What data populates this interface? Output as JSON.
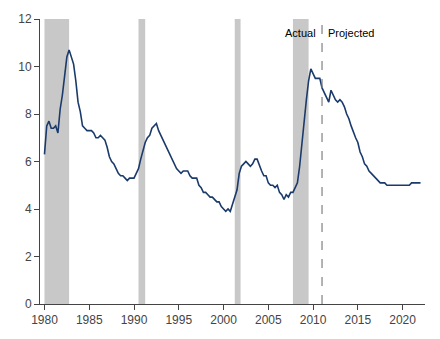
{
  "chart_data": {
    "type": "line",
    "x": [
      1980.0,
      1980.25,
      1980.5,
      1980.75,
      1981.0,
      1981.25,
      1981.5,
      1981.75,
      1982.0,
      1982.25,
      1982.5,
      1982.75,
      1983.0,
      1983.25,
      1983.5,
      1983.75,
      1984.0,
      1984.25,
      1984.5,
      1984.75,
      1985.0,
      1985.25,
      1985.5,
      1985.75,
      1986.0,
      1986.25,
      1986.5,
      1986.75,
      1987.0,
      1987.25,
      1987.5,
      1987.75,
      1988.0,
      1988.25,
      1988.5,
      1988.75,
      1989.0,
      1989.25,
      1989.5,
      1989.75,
      1990.0,
      1990.25,
      1990.5,
      1990.75,
      1991.0,
      1991.25,
      1991.5,
      1991.75,
      1992.0,
      1992.25,
      1992.5,
      1992.75,
      1993.0,
      1993.25,
      1993.5,
      1993.75,
      1994.0,
      1994.25,
      1994.5,
      1994.75,
      1995.0,
      1995.25,
      1995.5,
      1995.75,
      1996.0,
      1996.25,
      1996.5,
      1996.75,
      1997.0,
      1997.25,
      1997.5,
      1997.75,
      1998.0,
      1998.25,
      1998.5,
      1998.75,
      1999.0,
      1999.25,
      1999.5,
      1999.75,
      2000.0,
      2000.25,
      2000.5,
      2000.75,
      2001.0,
      2001.25,
      2001.5,
      2001.75,
      2002.0,
      2002.25,
      2002.5,
      2002.75,
      2003.0,
      2003.25,
      2003.5,
      2003.75,
      2004.0,
      2004.25,
      2004.5,
      2004.75,
      2005.0,
      2005.25,
      2005.5,
      2005.75,
      2006.0,
      2006.25,
      2006.5,
      2006.75,
      2007.0,
      2007.25,
      2007.5,
      2007.75,
      2008.0,
      2008.25,
      2008.5,
      2008.75,
      2009.0,
      2009.25,
      2009.5,
      2009.75,
      2010.0,
      2010.25,
      2010.5,
      2010.75,
      2011.0,
      2011.25,
      2011.5,
      2011.75,
      2012.0,
      2012.25,
      2012.5,
      2012.75,
      2013.0,
      2013.25,
      2013.5,
      2013.75,
      2014.0,
      2014.25,
      2014.5,
      2014.75,
      2015.0,
      2015.25,
      2015.5,
      2015.75,
      2016.0,
      2016.25,
      2016.5,
      2016.75,
      2017.0,
      2017.25,
      2017.5,
      2017.75,
      2018.0,
      2018.25,
      2018.5,
      2018.75,
      2019.0,
      2019.25,
      2019.5,
      2019.75,
      2020.0,
      2020.25,
      2020.5,
      2020.75,
      2021.0,
      2021.25,
      2021.5,
      2021.75,
      2022.0
    ],
    "values": [
      6.3,
      7.5,
      7.7,
      7.4,
      7.4,
      7.5,
      7.2,
      8.2,
      8.8,
      9.5,
      10.4,
      10.7,
      10.4,
      10.1,
      9.4,
      8.5,
      8.1,
      7.5,
      7.4,
      7.3,
      7.3,
      7.3,
      7.2,
      7.0,
      7.0,
      7.1,
      7.0,
      6.9,
      6.6,
      6.2,
      6.0,
      5.9,
      5.7,
      5.5,
      5.4,
      5.4,
      5.3,
      5.2,
      5.3,
      5.3,
      5.3,
      5.5,
      5.7,
      6.1,
      6.5,
      6.8,
      7.0,
      7.1,
      7.4,
      7.5,
      7.6,
      7.3,
      7.1,
      6.9,
      6.7,
      6.5,
      6.3,
      6.1,
      5.9,
      5.7,
      5.6,
      5.5,
      5.6,
      5.6,
      5.6,
      5.4,
      5.3,
      5.3,
      5.3,
      5.0,
      4.9,
      4.7,
      4.7,
      4.6,
      4.5,
      4.5,
      4.4,
      4.3,
      4.3,
      4.1,
      4.0,
      3.9,
      4.0,
      3.9,
      4.2,
      4.5,
      4.8,
      5.5,
      5.8,
      5.9,
      6.0,
      5.9,
      5.8,
      5.9,
      6.1,
      6.1,
      5.8,
      5.6,
      5.4,
      5.4,
      5.1,
      5.0,
      5.0,
      4.9,
      5.0,
      4.7,
      4.6,
      4.4,
      4.6,
      4.5,
      4.7,
      4.7,
      4.9,
      5.1,
      5.8,
      6.8,
      7.7,
      8.6,
      9.4,
      9.9,
      9.7,
      9.5,
      9.5,
      9.5,
      9.1,
      8.9,
      8.7,
      8.5,
      9.0,
      8.8,
      8.6,
      8.5,
      8.6,
      8.5,
      8.3,
      8.0,
      7.8,
      7.5,
      7.2,
      7.0,
      6.8,
      6.4,
      6.2,
      5.9,
      5.8,
      5.6,
      5.5,
      5.4,
      5.3,
      5.2,
      5.1,
      5.1,
      5.1,
      5.0,
      5.0,
      5.0,
      5.0,
      5.0,
      5.0,
      5.0,
      5.0,
      5.0,
      5.0,
      5.0,
      5.1,
      5.1,
      5.1,
      5.1,
      5.1
    ],
    "color": "#1a3a6b",
    "xlim": [
      1979.5,
      2022.5
    ],
    "xticks": [
      1980,
      1985,
      1990,
      1995,
      2000,
      2005,
      2010,
      2015,
      2020
    ],
    "ylim": [
      0,
      12
    ],
    "yticks": [
      0,
      2,
      4,
      6,
      8,
      10,
      12
    ],
    "grid": false,
    "bands": [
      {
        "from": 1980.0,
        "to": 1982.75,
        "color": "#c8c8c8"
      },
      {
        "from": 1990.5,
        "to": 1991.25,
        "color": "#c8c8c8"
      },
      {
        "from": 2001.25,
        "to": 2001.9,
        "color": "#c8c8c8"
      },
      {
        "from": 2007.75,
        "to": 2009.5,
        "color": "#c8c8c8"
      }
    ],
    "vline": {
      "x": 2011.0,
      "color": "gray",
      "line_style": "dashed"
    },
    "annotations": [
      {
        "text": "Actual"
      },
      {
        "text": "Projected"
      }
    ]
  }
}
